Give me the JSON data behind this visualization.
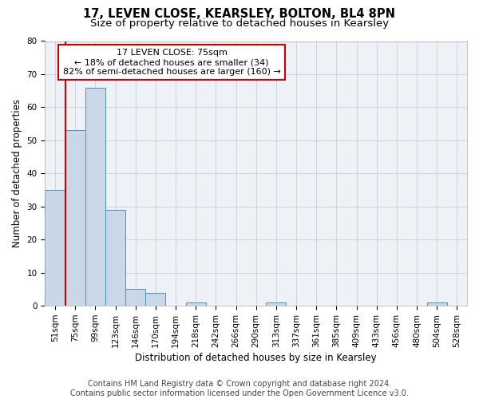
{
  "title1": "17, LEVEN CLOSE, KEARSLEY, BOLTON, BL4 8PN",
  "title2": "Size of property relative to detached houses in Kearsley",
  "xlabel": "Distribution of detached houses by size in Kearsley",
  "ylabel": "Number of detached properties",
  "categories": [
    "51sqm",
    "75sqm",
    "99sqm",
    "123sqm",
    "146sqm",
    "170sqm",
    "194sqm",
    "218sqm",
    "242sqm",
    "266sqm",
    "290sqm",
    "313sqm",
    "337sqm",
    "361sqm",
    "385sqm",
    "409sqm",
    "433sqm",
    "456sqm",
    "480sqm",
    "504sqm",
    "528sqm"
  ],
  "values": [
    35,
    53,
    66,
    29,
    5,
    4,
    0,
    1,
    0,
    0,
    0,
    1,
    0,
    0,
    0,
    0,
    0,
    0,
    0,
    1,
    0
  ],
  "bar_color": "#c8d8e8",
  "bar_edge_color": "#5090bb",
  "highlight_index": 1,
  "highlight_line_color": "#cc0000",
  "ylim": [
    0,
    80
  ],
  "yticks": [
    0,
    10,
    20,
    30,
    40,
    50,
    60,
    70,
    80
  ],
  "annotation_line1": "17 LEVEN CLOSE: 75sqm",
  "annotation_line2": "← 18% of detached houses are smaller (34)",
  "annotation_line3": "82% of semi-detached houses are larger (160) →",
  "annotation_box_color": "#ffffff",
  "annotation_box_edge": "#cc0000",
  "footer_text": "Contains HM Land Registry data © Crown copyright and database right 2024.\nContains public sector information licensed under the Open Government Licence v3.0.",
  "bg_color": "#eef2f7",
  "grid_color": "#c8d4e0",
  "title1_fontsize": 10.5,
  "title2_fontsize": 9.5,
  "xlabel_fontsize": 8.5,
  "ylabel_fontsize": 8.5,
  "tick_fontsize": 7.5,
  "annotation_fontsize": 8,
  "footer_fontsize": 7
}
